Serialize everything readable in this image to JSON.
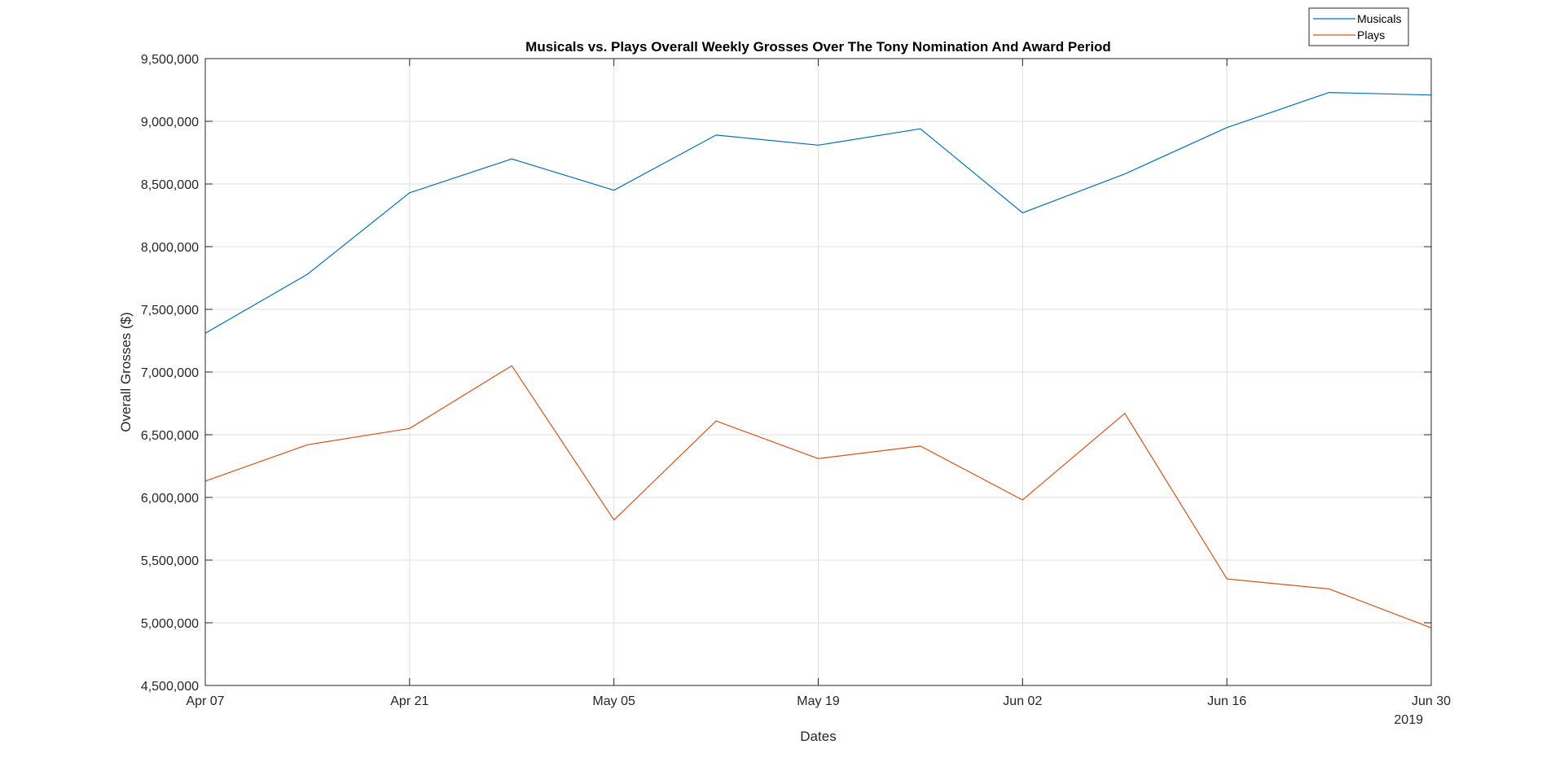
{
  "chart_data": {
    "type": "line",
    "title": "Musicals vs. Plays Overall Weekly Grosses Over The Tony Nomination And Award Period",
    "xlabel": "Dates",
    "ylabel": "Overall Grosses ($)",
    "year_label": "2019",
    "x_range": [
      "2019-04-07",
      "2019-06-30"
    ],
    "x_ticks": [
      {
        "date": "2019-04-07",
        "label": "Apr 07"
      },
      {
        "date": "2019-04-21",
        "label": "Apr 21"
      },
      {
        "date": "2019-05-05",
        "label": "May 05"
      },
      {
        "date": "2019-05-19",
        "label": "May 19"
      },
      {
        "date": "2019-06-02",
        "label": "Jun 02"
      },
      {
        "date": "2019-06-16",
        "label": "Jun 16"
      },
      {
        "date": "2019-06-30",
        "label": "Jun 30"
      }
    ],
    "ylim": [
      4500000,
      9500000
    ],
    "y_ticks": [
      {
        "value": 4500000,
        "label": "4,500,000"
      },
      {
        "value": 5000000,
        "label": "5,000,000"
      },
      {
        "value": 5500000,
        "label": "5,500,000"
      },
      {
        "value": 6000000,
        "label": "6,000,000"
      },
      {
        "value": 6500000,
        "label": "6,500,000"
      },
      {
        "value": 7000000,
        "label": "7,000,000"
      },
      {
        "value": 7500000,
        "label": "7,500,000"
      },
      {
        "value": 8000000,
        "label": "8,000,000"
      },
      {
        "value": 8500000,
        "label": "8,500,000"
      },
      {
        "value": 9000000,
        "label": "9,000,000"
      },
      {
        "value": 9500000,
        "label": "9,500,000"
      }
    ],
    "grid": true,
    "legend_position": "top-right",
    "x": [
      "2019-04-07",
      "2019-04-14",
      "2019-04-21",
      "2019-04-28",
      "2019-05-05",
      "2019-05-12",
      "2019-05-19",
      "2019-05-26",
      "2019-06-02",
      "2019-06-09",
      "2019-06-16",
      "2019-06-23",
      "2019-06-30"
    ],
    "series": [
      {
        "name": "Musicals",
        "color": "#0072BD",
        "values": [
          7310000,
          7780000,
          8430000,
          8700000,
          8450000,
          8890000,
          8810000,
          8940000,
          8270000,
          8580000,
          8950000,
          9230000,
          9210000
        ]
      },
      {
        "name": "Plays",
        "color": "#D95319",
        "values": [
          6130000,
          6420000,
          6550000,
          7050000,
          5820000,
          6610000,
          6310000,
          6410000,
          5980000,
          6670000,
          5350000,
          5270000,
          4960000
        ]
      }
    ]
  }
}
